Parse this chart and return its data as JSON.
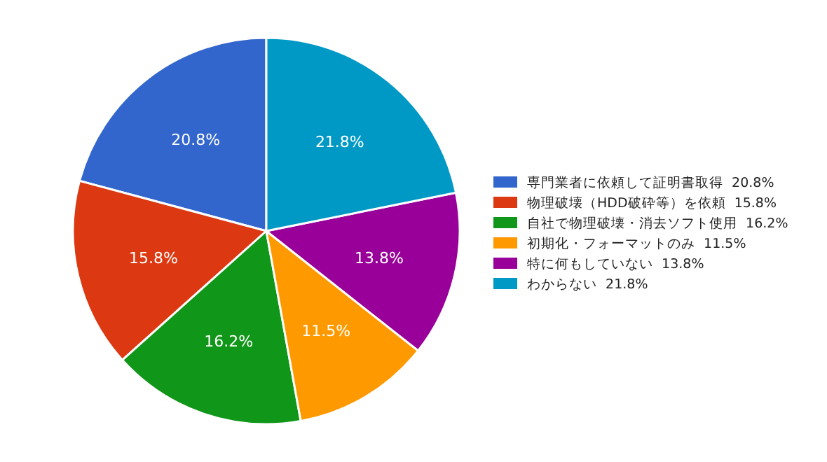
{
  "chart_data": {
    "type": "pie",
    "categories": [
      "専門業者に依頼して証明書取得  20.8%",
      "物理破壊（HDD破砕等）を依頼  15.8%",
      "自社で物理破壊・消去ソフト使用  16.2%",
      "初期化・フォーマットのみ  11.5%",
      "特に何もしていない  13.8%",
      "わからない  21.8%"
    ],
    "values": [
      20.8,
      15.8,
      16.2,
      11.5,
      13.8,
      21.8
    ],
    "value_labels": [
      "20.8%",
      "15.8%",
      "16.2%",
      "11.5%",
      "13.8%",
      "21.8%"
    ],
    "colors": [
      "#3366cc",
      "#dc3912",
      "#109618",
      "#ff9900",
      "#990099",
      "#0099c6"
    ],
    "legend": "right"
  }
}
